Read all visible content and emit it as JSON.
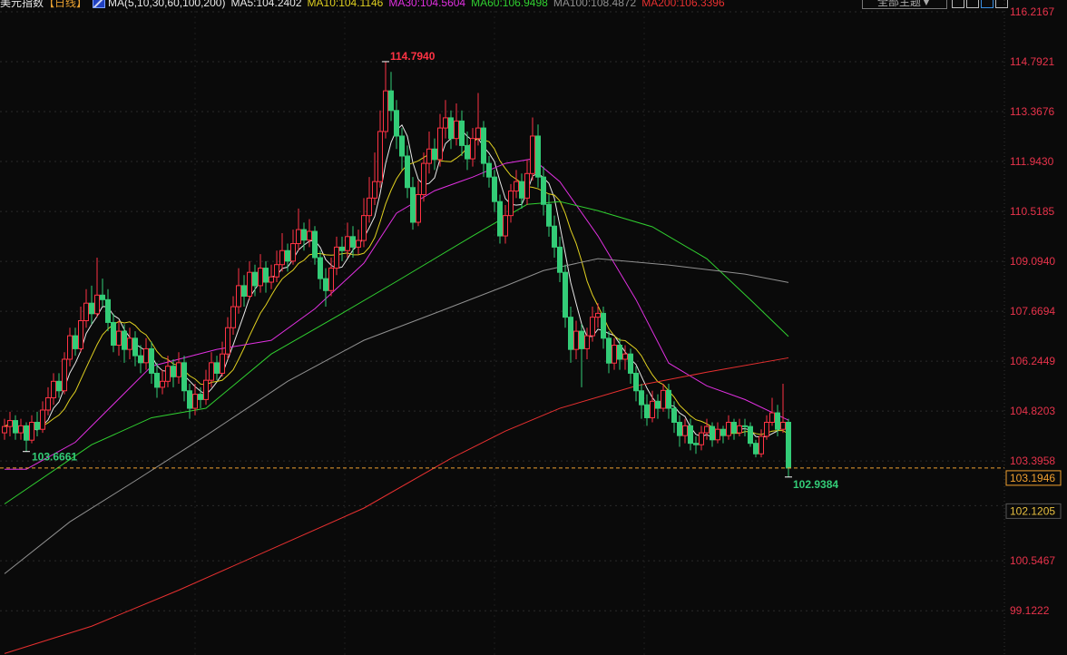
{
  "header": {
    "title": "美元指数",
    "period": "【日线】",
    "indicator": "MA(5,10,30,60,100,200)",
    "ma_values": [
      {
        "label": "MA5:104.2402",
        "color": "#e8e8e8"
      },
      {
        "label": "MA10:104.1146",
        "color": "#e0d020"
      },
      {
        "label": "MA30:104.5604",
        "color": "#e030e0"
      },
      {
        "label": "MA60:106.9498",
        "color": "#30d030"
      },
      {
        "label": "MA100:108.4872",
        "color": "#909090"
      },
      {
        "label": "MA200:106.3396",
        "color": "#e83030"
      }
    ]
  },
  "toolbar": {
    "theme_select": "全部主题▼",
    "icons": [
      "grid-icon",
      "layout-icon",
      "draw-icon",
      "window-icon"
    ]
  },
  "chart_data": {
    "type": "candlestick",
    "colors": {
      "up": "#ff3344",
      "down": "#33cc77",
      "background": "#0a0a0a",
      "axis_text": "#e8334b",
      "last_price": "#f0a030"
    },
    "y_ticks": [
      "116.2167",
      "114.7921",
      "113.3676",
      "111.9430",
      "110.5185",
      "109.0940",
      "107.6694",
      "106.2449",
      "104.8203",
      "103.3958",
      "102.1205",
      "100.5467",
      "99.1222"
    ],
    "ylim": [
      97.5,
      116.5
    ],
    "grid": true,
    "last_price": "103.1946",
    "annotations": {
      "high": "114.7940",
      "low_left": "103.6661",
      "low_right": "102.9384"
    },
    "candles_ohlc": [
      [
        104.2,
        104.6,
        104.0,
        104.38
      ],
      [
        104.38,
        104.8,
        104.1,
        104.55
      ],
      [
        104.55,
        104.7,
        104.0,
        104.2
      ],
      [
        104.2,
        104.6,
        104.0,
        104.4
      ],
      [
        104.4,
        104.5,
        103.6661,
        103.99
      ],
      [
        103.99,
        104.7,
        103.9,
        104.5
      ],
      [
        104.5,
        104.8,
        104.1,
        104.3
      ],
      [
        104.3,
        105.1,
        104.2,
        104.85
      ],
      [
        104.85,
        105.5,
        104.7,
        105.2
      ],
      [
        105.2,
        105.9,
        105.0,
        105.67
      ],
      [
        105.67,
        105.9,
        105.2,
        105.4
      ],
      [
        105.4,
        106.5,
        105.3,
        106.3
      ],
      [
        106.3,
        107.2,
        106.1,
        106.97
      ],
      [
        106.97,
        107.2,
        106.4,
        106.6
      ],
      [
        106.6,
        107.8,
        106.5,
        107.4
      ],
      [
        107.4,
        108.3,
        107.2,
        107.9
      ],
      [
        107.9,
        108.4,
        107.3,
        107.6
      ],
      [
        107.6,
        109.2,
        107.5,
        108.13
      ],
      [
        108.13,
        108.6,
        107.8,
        108.0
      ],
      [
        108.0,
        108.3,
        107.1,
        107.35
      ],
      [
        107.35,
        107.6,
        106.5,
        106.7
      ],
      [
        106.7,
        107.4,
        106.4,
        107.1
      ],
      [
        107.1,
        107.3,
        106.2,
        106.58
      ],
      [
        106.58,
        107.2,
        106.3,
        106.9
      ],
      [
        106.9,
        107.1,
        106.1,
        106.4
      ],
      [
        106.4,
        106.7,
        105.9,
        106.2
      ],
      [
        106.2,
        106.9,
        106.0,
        106.6
      ],
      [
        106.6,
        106.8,
        105.6,
        105.9
      ],
      [
        105.9,
        106.2,
        105.2,
        105.5
      ],
      [
        105.5,
        106.0,
        105.3,
        105.67
      ],
      [
        105.67,
        106.4,
        105.5,
        106.1
      ],
      [
        106.1,
        106.3,
        105.5,
        105.8
      ],
      [
        105.8,
        106.5,
        105.6,
        106.2
      ],
      [
        106.2,
        106.4,
        105.1,
        105.4
      ],
      [
        105.4,
        105.6,
        104.6,
        104.9
      ],
      [
        104.9,
        105.6,
        104.7,
        105.3
      ],
      [
        105.3,
        105.5,
        104.9,
        105.15
      ],
      [
        105.15,
        106.0,
        105.0,
        105.7
      ],
      [
        105.7,
        106.5,
        105.5,
        106.2
      ],
      [
        106.2,
        106.4,
        105.7,
        105.9
      ],
      [
        105.9,
        106.8,
        105.8,
        106.45
      ],
      [
        106.45,
        107.5,
        106.3,
        107.2
      ],
      [
        107.2,
        108.1,
        107.0,
        107.8
      ],
      [
        107.8,
        108.9,
        107.6,
        108.4
      ],
      [
        108.4,
        108.7,
        107.8,
        108.1
      ],
      [
        108.1,
        109.1,
        108.0,
        108.78
      ],
      [
        108.78,
        109.0,
        108.1,
        108.4
      ],
      [
        108.4,
        109.3,
        108.2,
        108.9
      ],
      [
        108.9,
        109.1,
        108.2,
        108.5
      ],
      [
        108.5,
        109.0,
        108.3,
        108.65
      ],
      [
        108.65,
        109.4,
        108.5,
        109.0
      ],
      [
        109.0,
        109.9,
        108.8,
        109.4
      ],
      [
        109.4,
        109.6,
        108.8,
        109.1
      ],
      [
        109.1,
        110.0,
        109.0,
        109.6
      ],
      [
        109.6,
        110.6,
        109.4,
        110.0
      ],
      [
        110.0,
        110.2,
        109.4,
        109.7
      ],
      [
        109.7,
        110.3,
        109.5,
        109.95
      ],
      [
        109.95,
        110.1,
        109.0,
        109.2
      ],
      [
        109.2,
        109.4,
        108.3,
        108.6
      ],
      [
        108.6,
        108.9,
        107.8,
        108.26
      ],
      [
        108.26,
        109.2,
        108.1,
        108.9
      ],
      [
        108.9,
        109.8,
        108.7,
        109.5
      ],
      [
        109.5,
        109.8,
        109.1,
        109.4
      ],
      [
        109.4,
        110.2,
        109.2,
        109.8
      ],
      [
        109.8,
        110.1,
        109.2,
        109.5
      ],
      [
        109.5,
        110.0,
        109.3,
        109.69
      ],
      [
        109.69,
        110.9,
        109.5,
        110.4
      ],
      [
        110.4,
        111.5,
        110.2,
        110.9
      ],
      [
        110.9,
        112.2,
        110.7,
        111.37
      ],
      [
        111.37,
        113.4,
        111.2,
        112.8
      ],
      [
        112.8,
        114.794,
        112.6,
        113.96
      ],
      [
        113.96,
        114.5,
        113.1,
        113.4
      ],
      [
        113.4,
        113.7,
        112.3,
        112.67
      ],
      [
        112.67,
        112.9,
        111.7,
        112.1
      ],
      [
        112.1,
        112.4,
        110.9,
        111.2
      ],
      [
        111.2,
        111.5,
        110.0,
        110.21
      ],
      [
        110.21,
        111.4,
        110.1,
        111.0
      ],
      [
        111.0,
        112.2,
        110.8,
        111.89
      ],
      [
        111.89,
        112.8,
        111.6,
        112.3
      ],
      [
        112.3,
        112.6,
        111.7,
        112.0
      ],
      [
        112.0,
        113.3,
        111.8,
        112.9
      ],
      [
        112.9,
        113.7,
        112.6,
        113.19
      ],
      [
        113.19,
        113.4,
        112.3,
        112.6
      ],
      [
        112.6,
        113.6,
        112.4,
        113.1
      ],
      [
        113.1,
        113.4,
        112.1,
        112.4
      ],
      [
        112.4,
        112.8,
        111.7,
        112.02
      ],
      [
        112.02,
        112.9,
        111.8,
        112.6
      ],
      [
        112.6,
        113.9,
        112.4,
        112.9
      ],
      [
        112.9,
        113.1,
        111.5,
        111.89
      ],
      [
        111.89,
        112.1,
        111.2,
        111.5
      ],
      [
        111.5,
        111.7,
        110.5,
        110.8
      ],
      [
        110.8,
        111.0,
        109.6,
        109.82
      ],
      [
        109.82,
        110.7,
        109.6,
        110.4
      ],
      [
        110.4,
        111.3,
        110.2,
        111.1
      ],
      [
        111.1,
        111.7,
        110.9,
        111.37
      ],
      [
        111.37,
        111.6,
        110.6,
        110.9
      ],
      [
        110.9,
        112.0,
        110.7,
        111.6
      ],
      [
        111.6,
        113.2,
        111.4,
        112.67
      ],
      [
        112.67,
        113.0,
        111.2,
        111.5
      ],
      [
        111.5,
        111.8,
        110.4,
        110.72
      ],
      [
        110.72,
        111.0,
        109.8,
        110.1
      ],
      [
        110.1,
        110.4,
        109.2,
        109.5
      ],
      [
        109.5,
        109.8,
        108.5,
        108.78
      ],
      [
        108.78,
        109.0,
        107.2,
        107.5
      ],
      [
        107.5,
        107.8,
        106.2,
        106.58
      ],
      [
        106.58,
        107.4,
        106.3,
        107.1
      ],
      [
        107.1,
        107.3,
        105.5,
        106.6
      ],
      [
        106.6,
        107.2,
        106.3,
        106.97
      ],
      [
        106.97,
        107.8,
        106.8,
        107.5
      ],
      [
        107.5,
        107.9,
        107.2,
        107.61
      ],
      [
        107.61,
        107.8,
        106.6,
        106.9
      ],
      [
        106.9,
        107.1,
        105.9,
        106.19
      ],
      [
        106.19,
        106.9,
        106.0,
        106.7
      ],
      [
        106.7,
        106.9,
        106.0,
        106.3
      ],
      [
        106.3,
        106.7,
        106.0,
        106.45
      ],
      [
        106.45,
        106.6,
        105.6,
        105.9
      ],
      [
        105.9,
        106.1,
        105.1,
        105.4
      ],
      [
        105.4,
        105.6,
        104.6,
        105.0
      ],
      [
        105.0,
        105.3,
        104.4,
        104.63
      ],
      [
        104.63,
        105.4,
        104.5,
        105.1
      ],
      [
        105.1,
        105.3,
        104.6,
        104.9
      ],
      [
        104.9,
        105.6,
        104.8,
        105.41
      ],
      [
        105.41,
        105.6,
        104.6,
        104.9
      ],
      [
        104.9,
        105.1,
        104.2,
        104.5
      ],
      [
        104.5,
        104.7,
        103.8,
        104.12
      ],
      [
        104.12,
        104.6,
        103.9,
        104.4
      ],
      [
        104.4,
        104.6,
        103.7,
        103.9
      ],
      [
        103.9,
        104.1,
        103.6,
        103.86
      ],
      [
        103.86,
        104.4,
        103.7,
        104.2
      ],
      [
        104.2,
        104.6,
        104.0,
        104.38
      ],
      [
        104.38,
        104.5,
        103.8,
        104.0
      ],
      [
        104.0,
        104.5,
        103.9,
        104.3
      ],
      [
        104.3,
        104.4,
        103.9,
        104.12
      ],
      [
        104.12,
        104.7,
        104.0,
        104.5
      ],
      [
        104.5,
        104.6,
        104.0,
        104.2
      ],
      [
        104.2,
        104.6,
        104.1,
        104.4
      ],
      [
        104.4,
        104.6,
        104.1,
        104.38
      ],
      [
        104.38,
        104.5,
        103.8,
        103.9
      ],
      [
        103.9,
        104.0,
        103.5,
        103.6
      ],
      [
        103.6,
        104.3,
        103.5,
        104.1
      ],
      [
        104.1,
        104.7,
        104.0,
        104.5
      ],
      [
        104.5,
        105.2,
        104.4,
        104.77
      ],
      [
        104.77,
        105.0,
        104.1,
        104.3
      ],
      [
        104.3,
        105.6,
        104.2,
        104.5
      ],
      [
        104.5,
        104.6,
        102.9384,
        103.1946
      ]
    ],
    "ma_series": [
      {
        "name": "MA5",
        "period": 5,
        "color": "#e8e8e8"
      },
      {
        "name": "MA10",
        "period": 10,
        "color": "#e0d020"
      },
      {
        "name": "MA30",
        "color": "#e030e0",
        "points": [
          [
            0,
            103.16
          ],
          [
            4,
            103.16
          ],
          [
            13,
            103.93
          ],
          [
            27,
            106.1
          ],
          [
            39,
            106.58
          ],
          [
            49,
            106.84
          ],
          [
            57,
            107.74
          ],
          [
            66,
            109.04
          ],
          [
            72,
            110.47
          ],
          [
            79,
            111.11
          ],
          [
            86,
            111.5
          ],
          [
            92,
            111.89
          ],
          [
            97,
            112.02
          ],
          [
            102,
            111.37
          ],
          [
            109,
            109.82
          ],
          [
            116,
            108.0
          ],
          [
            122,
            106.19
          ],
          [
            129,
            105.54
          ],
          [
            136,
            105.15
          ],
          [
            144,
            104.56
          ]
        ]
      },
      {
        "name": "MA60",
        "color": "#30d030",
        "points": [
          [
            0,
            102.17
          ],
          [
            16,
            103.86
          ],
          [
            27,
            104.63
          ],
          [
            37,
            104.9
          ],
          [
            49,
            106.45
          ],
          [
            62,
            107.61
          ],
          [
            72,
            108.52
          ],
          [
            86,
            109.82
          ],
          [
            96,
            110.72
          ],
          [
            102,
            110.8
          ],
          [
            109,
            110.54
          ],
          [
            119,
            110.08
          ],
          [
            129,
            109.17
          ],
          [
            137,
            108.0
          ],
          [
            144,
            106.95
          ]
        ]
      },
      {
        "name": "MA100",
        "color": "#909090",
        "points": [
          [
            0,
            100.18
          ],
          [
            12,
            101.66
          ],
          [
            24,
            102.83
          ],
          [
            37,
            104.12
          ],
          [
            52,
            105.67
          ],
          [
            66,
            106.84
          ],
          [
            79,
            107.61
          ],
          [
            92,
            108.39
          ],
          [
            99,
            108.83
          ],
          [
            109,
            109.17
          ],
          [
            122,
            108.99
          ],
          [
            136,
            108.73
          ],
          [
            144,
            108.49
          ]
        ]
      },
      {
        "name": "MA200",
        "color": "#e83030",
        "points": [
          [
            0,
            97.9
          ],
          [
            16,
            98.68
          ],
          [
            32,
            99.71
          ],
          [
            49,
            100.88
          ],
          [
            66,
            102.05
          ],
          [
            82,
            103.47
          ],
          [
            92,
            104.25
          ],
          [
            102,
            104.9
          ],
          [
            116,
            105.54
          ],
          [
            129,
            105.93
          ],
          [
            144,
            106.34
          ]
        ]
      }
    ]
  }
}
